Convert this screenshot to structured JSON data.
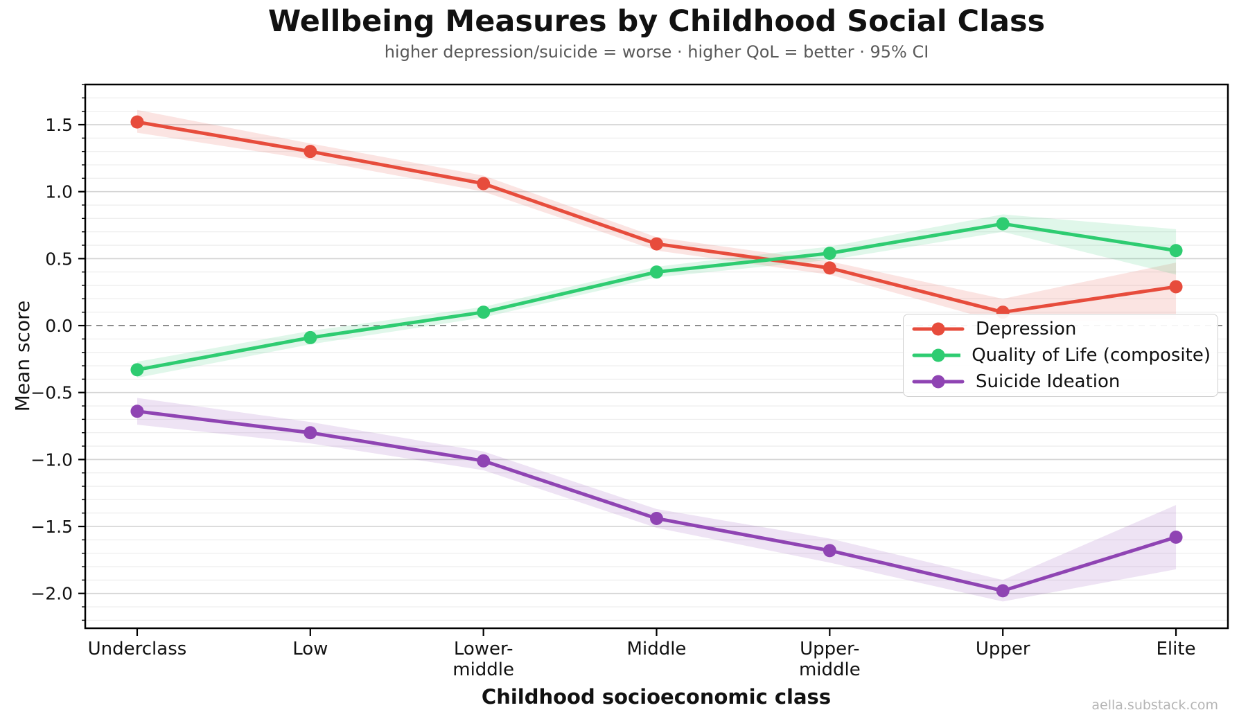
{
  "header": {
    "title": "Wellbeing Measures by Childhood Social Class",
    "subtitle": "higher depression/suicide = worse · higher QoL = better · 95% CI"
  },
  "watermark": "aella.substack.com",
  "chart_data": {
    "type": "line",
    "title": "Wellbeing Measures by Childhood Social Class",
    "subtitle": "higher depression/suicide = worse · higher QoL = better · 95% CI",
    "xlabel": "Childhood socioeconomic class",
    "ylabel": "Mean score",
    "categories": [
      "Underclass",
      "Low",
      "Lower-\nmiddle",
      "Middle",
      "Upper-\nmiddle",
      "Upper",
      "Elite"
    ],
    "ylim": [
      -2.26,
      1.8
    ],
    "yticks_major": [
      1.5,
      1.0,
      0.5,
      0.0,
      -0.5,
      -1.0,
      -1.5,
      -2.0
    ],
    "ytick_minor_step": 0.1,
    "grid": true,
    "zero_line": {
      "value": 0.0,
      "style": "dashed",
      "color": "#8c8c8c"
    },
    "legend_position": "center-right",
    "ci_label": "95% CI",
    "series": [
      {
        "name": "Depression",
        "color": "#e74c3c",
        "values": [
          1.52,
          1.3,
          1.06,
          0.61,
          0.43,
          0.1,
          0.29
        ],
        "ci_upper": [
          1.61,
          1.36,
          1.12,
          0.66,
          0.48,
          0.2,
          0.47
        ],
        "ci_lower": [
          1.44,
          1.24,
          1.0,
          0.56,
          0.38,
          0.02,
          0.05
        ]
      },
      {
        "name": "Quality of Life (composite)",
        "color": "#2ecc71",
        "values": [
          -0.33,
          -0.09,
          0.1,
          0.4,
          0.54,
          0.76,
          0.56
        ],
        "ci_upper": [
          -0.27,
          -0.04,
          0.14,
          0.44,
          0.59,
          0.83,
          0.72
        ],
        "ci_lower": [
          -0.39,
          -0.14,
          0.06,
          0.36,
          0.49,
          0.7,
          0.38
        ]
      },
      {
        "name": "Suicide Ideation",
        "color": "#8f44b3",
        "values": [
          -0.64,
          -0.8,
          -1.01,
          -1.44,
          -1.68,
          -1.98,
          -1.58
        ],
        "ci_upper": [
          -0.54,
          -0.72,
          -0.94,
          -1.37,
          -1.59,
          -1.9,
          -1.34
        ],
        "ci_lower": [
          -0.74,
          -0.88,
          -1.08,
          -1.51,
          -1.77,
          -2.06,
          -1.82
        ]
      }
    ]
  }
}
